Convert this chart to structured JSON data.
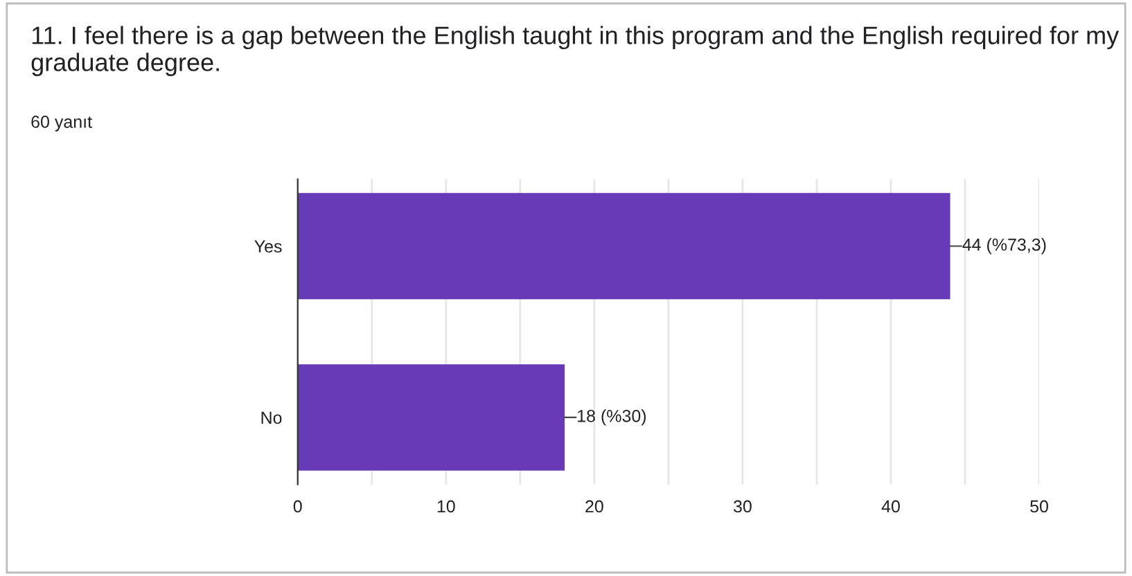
{
  "chart_data": {
    "type": "bar",
    "orientation": "horizontal",
    "title": "11. I feel there is a gap between the English taught in this program and the English required for my graduate degree.",
    "subtitle": "60 yanıt",
    "categories": [
      "Yes",
      "No"
    ],
    "values": [
      44,
      18
    ],
    "value_labels": [
      "44 (%73,3)",
      "18 (%30)"
    ],
    "color": "#673ab7",
    "xlim": [
      0,
      50
    ],
    "xticks": [
      0,
      {
        "value": 5,
        "label": null
      },
      10,
      {
        "value": 15,
        "label": null
      },
      20,
      {
        "value": 25,
        "label": null
      },
      30,
      {
        "value": 35,
        "label": null
      },
      40,
      {
        "value": 45,
        "label": null
      },
      50
    ],
    "grid": "x",
    "legend": false
  }
}
